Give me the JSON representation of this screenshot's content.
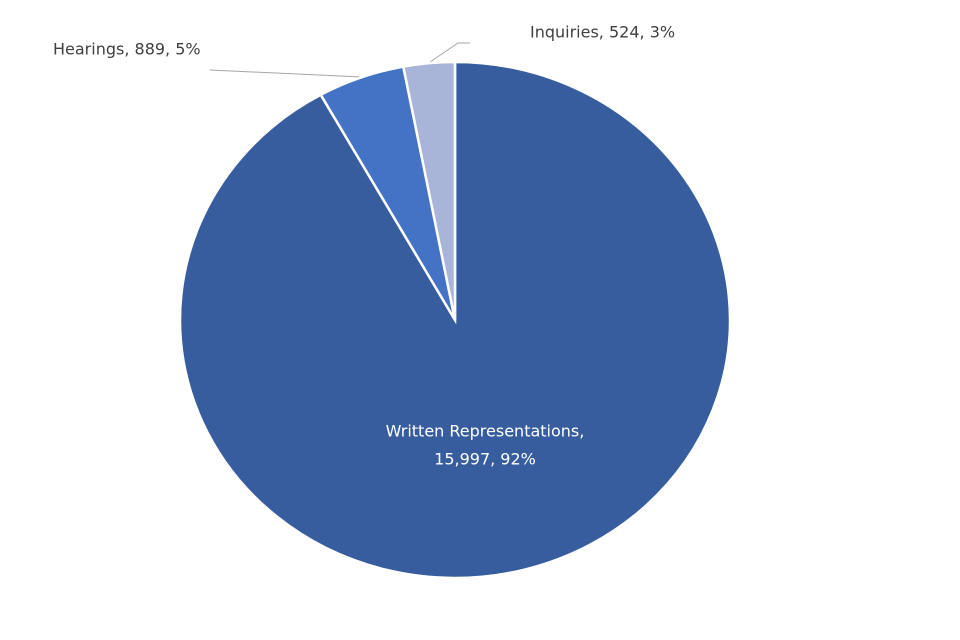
{
  "chart_data": {
    "type": "pie",
    "categories": [
      "Written Representations",
      "Hearings",
      "Inquiries"
    ],
    "values": [
      15997,
      889,
      524
    ],
    "value_labels": [
      [
        "Written Representations,",
        "15,997,  92%"
      ],
      [
        "Hearings, 889, 5%"
      ],
      [
        "Inquiries, 524, 3%"
      ]
    ],
    "colors": [
      "#385d9f",
      "#4472c4",
      "#a9b5d8"
    ]
  }
}
